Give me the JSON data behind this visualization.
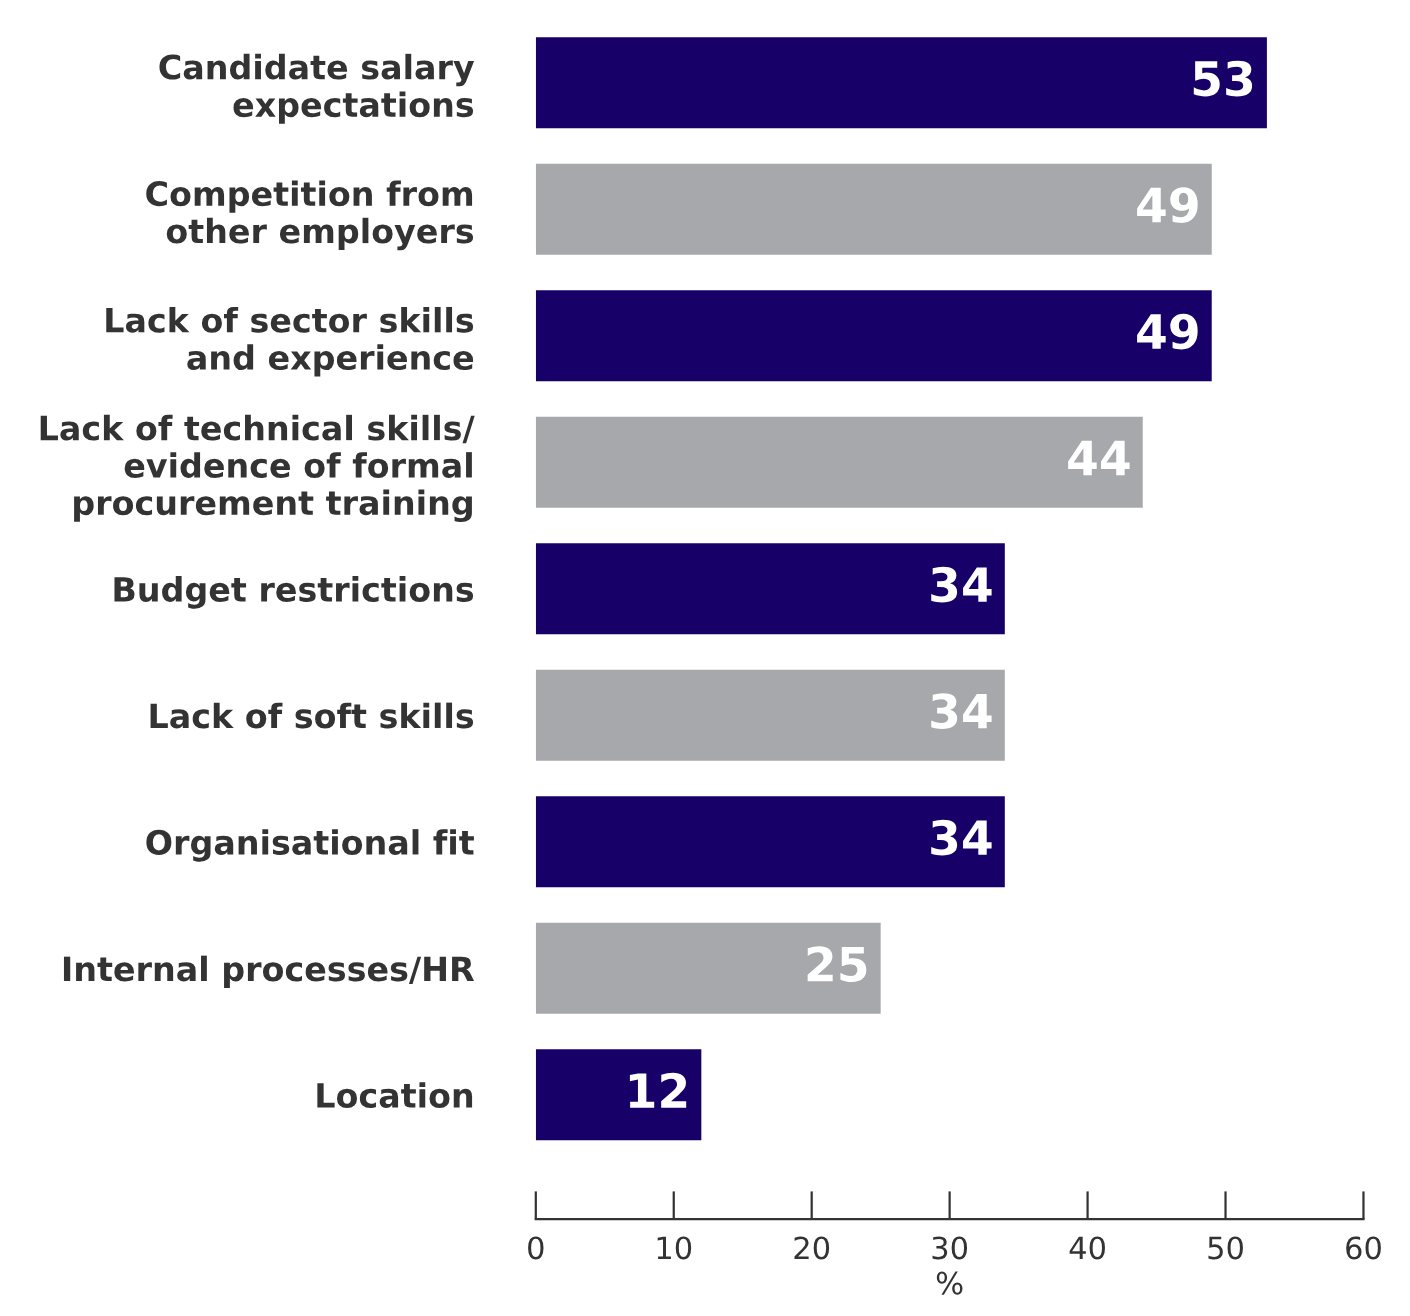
{
  "chart_data": {
    "type": "bar",
    "orientation": "horizontal",
    "xlabel": "%",
    "categories": [
      "Candidate salary\nexpectations",
      "Competition from\nother employers",
      "Lack of sector skills\nand experience",
      "Lack of technical skills/\nevidence of formal\nprocurement training",
      "Budget restrictions",
      "Lack of soft skills",
      "Organisational fit",
      "Internal processes/HR",
      "Location"
    ],
    "values": [
      53,
      49,
      49,
      44,
      34,
      34,
      34,
      25,
      12
    ],
    "colors": [
      "#170068",
      "#a7a8ab",
      "#170068",
      "#a7a8ab",
      "#170068",
      "#a7a8ab",
      "#170068",
      "#a7a8ab",
      "#170068"
    ],
    "data_labels": true,
    "xlim": [
      0,
      60
    ],
    "xticks": [
      0,
      10,
      20,
      30,
      40,
      50,
      60
    ],
    "grid": false,
    "legend": false
  }
}
